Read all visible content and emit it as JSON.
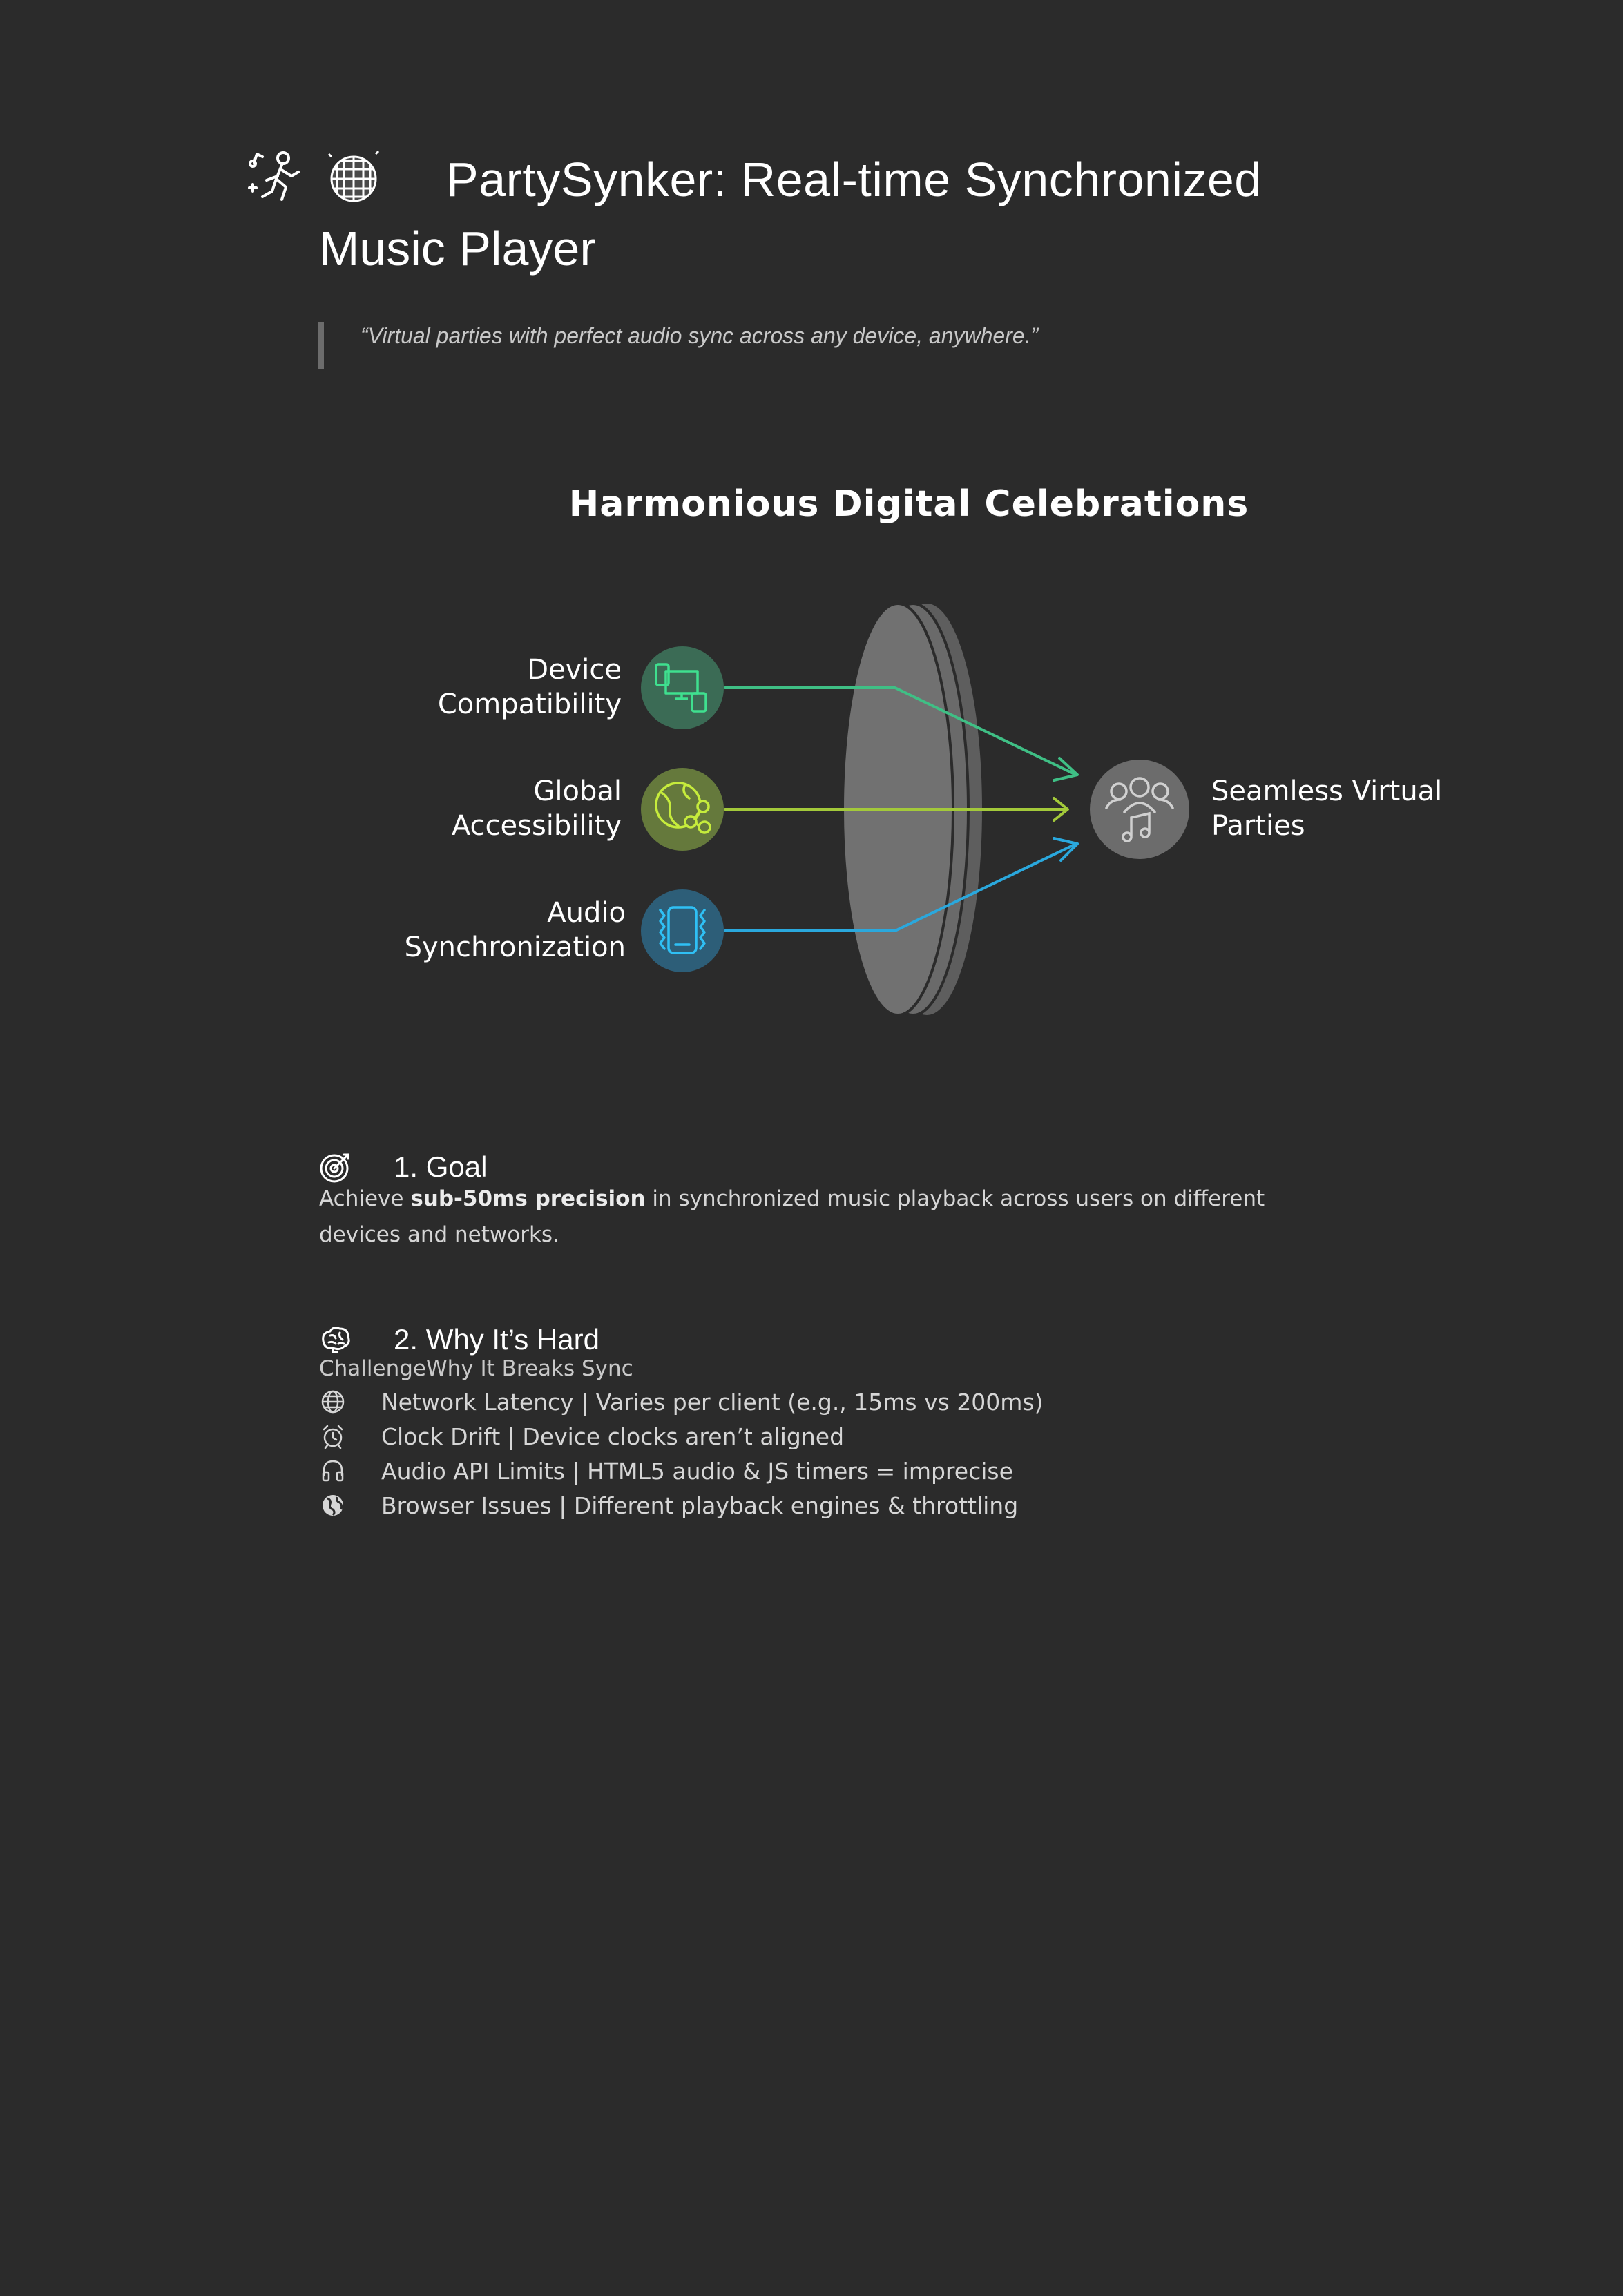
{
  "header": {
    "title_line1": "PartySynker: Real-time Synchronized",
    "title_line2": "Music Player",
    "title_icons": [
      "dancer-icon",
      "disco-ball-icon"
    ]
  },
  "quote": "“Virtual parties with perfect audio sync across any device, anywhere.”",
  "diagram": {
    "title": "Harmonious Digital Celebrations",
    "inputs": [
      {
        "line1": "Device",
        "line2": "Compatibility",
        "icon": "devices-icon",
        "color": "#3fbf85",
        "circle": "#3b6b55"
      },
      {
        "line1": "Global",
        "line2": "Accessibility",
        "icon": "globe-network-icon",
        "color": "#a3c93a",
        "circle": "#65793c"
      },
      {
        "line1": "Audio",
        "line2": "Synchronization",
        "icon": "phone-vibrate-icon",
        "color": "#2aa8dd",
        "circle": "#2d5e78"
      }
    ],
    "output": {
      "line1": "Seamless Virtual",
      "line2": "Parties",
      "icon": "group-music-icon",
      "circle": "#6c6c6c"
    },
    "lens_color": "#6e6e6e"
  },
  "goal": {
    "heading": "1. Goal",
    "icon": "target-icon",
    "text_before": "Achieve ",
    "text_bold": "sub-50ms precision",
    "text_after": " in synchronized music playback across users on different devices and networks."
  },
  "why_hard": {
    "heading": "2. Why It’s Hard",
    "icon": "brain-icon",
    "table_header": "ChallengeWhy It Breaks Sync",
    "rows": [
      {
        "icon": "globe-icon",
        "text": "Network Latency | Varies per client (e.g., 15ms vs 200ms)"
      },
      {
        "icon": "alarm-clock-icon",
        "text": "Clock Drift | Device clocks aren’t aligned"
      },
      {
        "icon": "headphones-icon",
        "text": "Audio API Limits | HTML5 audio & JS timers = imprecise"
      },
      {
        "icon": "earth-icon",
        "text": "Browser Issues | Different playback engines & throttling"
      }
    ]
  }
}
